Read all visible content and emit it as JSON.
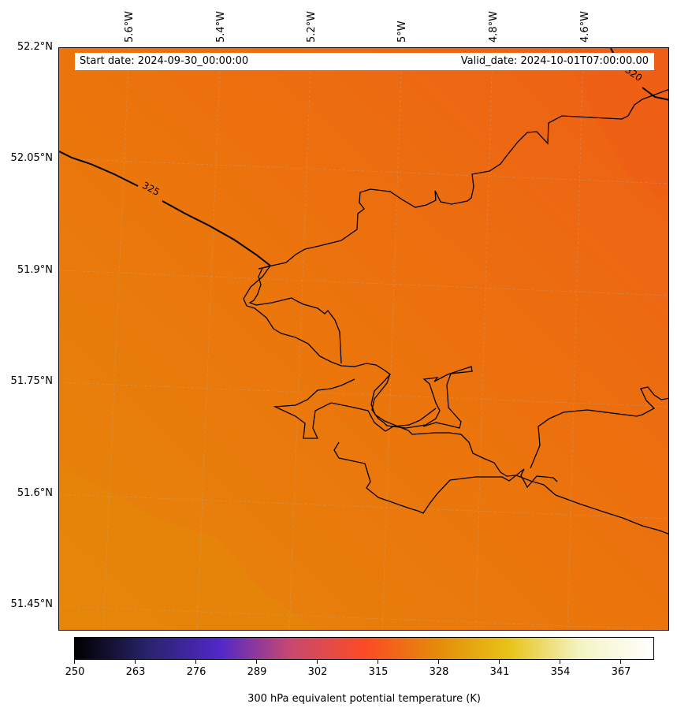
{
  "map": {
    "start_date": "Start date: 2024-09-30_00:00:00",
    "valid_date": "Valid_date: 2024-10-01T07:00:00.00",
    "lon_labels": [
      "5.6°W",
      "5.4°W",
      "5.2°W",
      "5°W",
      "4.8°W",
      "4.6°W"
    ],
    "lat_labels": [
      "52.2°N",
      "52.05°N",
      "51.9°N",
      "51.75°N",
      "51.6°N",
      "51.45°N"
    ],
    "contour_labels": [
      "325",
      "320"
    ],
    "field_colors": {
      "low": "#e5860a",
      "mid": "#eb740c",
      "high": "#ee5f16"
    },
    "coastline_color": "#000000"
  },
  "colorbar": {
    "title": "300 hPa equivalent potential temperature (K)",
    "ticks": [
      "250",
      "263",
      "276",
      "289",
      "302",
      "315",
      "328",
      "341",
      "354",
      "367"
    ],
    "colormap_stops": [
      "#000000",
      "#28236b",
      "#5128c8",
      "#c9496e",
      "#fc4a26",
      "#e58a0a",
      "#e8c317",
      "#f3f4c5",
      "#ffffff"
    ]
  }
}
